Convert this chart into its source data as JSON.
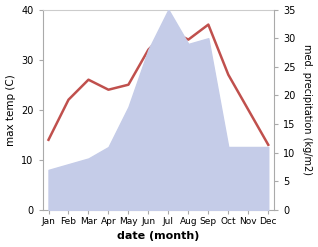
{
  "months": [
    "Jan",
    "Feb",
    "Mar",
    "Apr",
    "May",
    "Jun",
    "Jul",
    "Aug",
    "Sep",
    "Oct",
    "Nov",
    "Dec"
  ],
  "temperature": [
    14,
    22,
    26,
    24,
    25,
    32,
    36,
    34,
    37,
    27,
    20,
    13
  ],
  "precipitation": [
    7,
    8,
    9,
    11,
    18,
    28,
    35,
    29,
    30,
    11,
    11,
    11
  ],
  "temp_color": "#c0504d",
  "precip_fill_color": "#c5cce8",
  "temp_ylim": [
    0,
    40
  ],
  "precip_ylim": [
    0,
    35
  ],
  "temp_yticks": [
    0,
    10,
    20,
    30,
    40
  ],
  "precip_yticks": [
    0,
    5,
    10,
    15,
    20,
    25,
    30,
    35
  ],
  "xlabel": "date (month)",
  "ylabel_left": "max temp (C)",
  "ylabel_right": "med. precipitation (kg/m2)",
  "background_color": "#ffffff",
  "spine_color": "#aaaaaa",
  "top_line_color": "#cccccc"
}
